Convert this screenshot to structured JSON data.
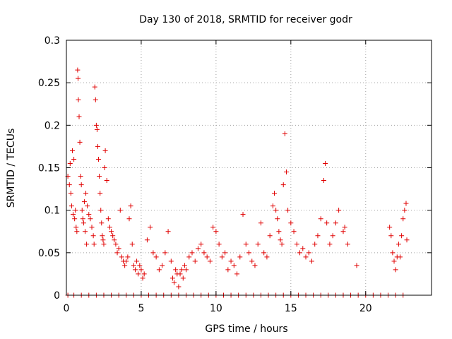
{
  "chart_data": {
    "type": "scatter",
    "title": "Day 130 of 2018, SRMTID for receiver godr",
    "xlabel": "GPS time / hours",
    "ylabel": "SRMTID / TECUs",
    "xlim": [
      0,
      24.4
    ],
    "ylim": [
      0,
      0.3
    ],
    "x_ticks": [
      0,
      5,
      10,
      15,
      20
    ],
    "x_tick_labels": [
      "0",
      "5",
      "10",
      "15",
      "20"
    ],
    "y_ticks": [
      0,
      0.05,
      0.1,
      0.15,
      0.2,
      0.25,
      0.3
    ],
    "y_tick_labels": [
      "0",
      "0.05",
      "0.1",
      "0.15",
      "0.2",
      "0.25",
      "0.3"
    ],
    "grid": true,
    "marker": "+",
    "series": [
      {
        "name": "SRMTID",
        "color": "#e00000",
        "points": [
          [
            0.1,
            0.14
          ],
          [
            0.2,
            0.13
          ],
          [
            0.25,
            0.155
          ],
          [
            0.3,
            0.12
          ],
          [
            0.35,
            0.105
          ],
          [
            0.4,
            0.17
          ],
          [
            0.45,
            0.095
          ],
          [
            0.5,
            0.16
          ],
          [
            0.55,
            0.09
          ],
          [
            0.6,
            0.1
          ],
          [
            0.65,
            0.08
          ],
          [
            0.7,
            0.075
          ],
          [
            0.75,
            0.265
          ],
          [
            0.78,
            0.255
          ],
          [
            0.8,
            0.23
          ],
          [
            0.85,
            0.21
          ],
          [
            0.9,
            0.18
          ],
          [
            0.95,
            0.14
          ],
          [
            1.0,
            0.13
          ],
          [
            1.05,
            0.1
          ],
          [
            1.1,
            0.09
          ],
          [
            1.15,
            0.085
          ],
          [
            1.2,
            0.11
          ],
          [
            1.25,
            0.075
          ],
          [
            1.3,
            0.12
          ],
          [
            1.35,
            0.06
          ],
          [
            1.4,
            0.105
          ],
          [
            1.5,
            0.095
          ],
          [
            1.6,
            0.09
          ],
          [
            1.7,
            0.08
          ],
          [
            1.8,
            0.07
          ],
          [
            1.85,
            0.06
          ],
          [
            1.9,
            0.245
          ],
          [
            1.95,
            0.23
          ],
          [
            2.0,
            0.2
          ],
          [
            2.05,
            0.195
          ],
          [
            2.1,
            0.175
          ],
          [
            2.15,
            0.16
          ],
          [
            2.2,
            0.14
          ],
          [
            2.25,
            0.12
          ],
          [
            2.3,
            0.1
          ],
          [
            2.35,
            0.085
          ],
          [
            2.4,
            0.07
          ],
          [
            2.45,
            0.065
          ],
          [
            2.5,
            0.06
          ],
          [
            2.55,
            0.15
          ],
          [
            2.6,
            0.17
          ],
          [
            2.7,
            0.135
          ],
          [
            2.8,
            0.09
          ],
          [
            2.9,
            0.08
          ],
          [
            3.0,
            0.075
          ],
          [
            3.1,
            0.07
          ],
          [
            3.2,
            0.065
          ],
          [
            3.3,
            0.06
          ],
          [
            3.4,
            0.05
          ],
          [
            3.5,
            0.055
          ],
          [
            3.6,
            0.1
          ],
          [
            3.7,
            0.045
          ],
          [
            3.8,
            0.04
          ],
          [
            3.9,
            0.035
          ],
          [
            4.0,
            0.04
          ],
          [
            4.1,
            0.045
          ],
          [
            4.2,
            0.09
          ],
          [
            4.3,
            0.105
          ],
          [
            4.4,
            0.06
          ],
          [
            4.5,
            0.035
          ],
          [
            4.6,
            0.03
          ],
          [
            4.7,
            0.04
          ],
          [
            4.8,
            0.025
          ],
          [
            4.9,
            0.035
          ],
          [
            5.0,
            0.03
          ],
          [
            5.1,
            0.02
          ],
          [
            5.2,
            0.025
          ],
          [
            5.4,
            0.065
          ],
          [
            5.6,
            0.08
          ],
          [
            5.8,
            0.05
          ],
          [
            6.0,
            0.045
          ],
          [
            6.2,
            0.03
          ],
          [
            6.4,
            0.035
          ],
          [
            6.6,
            0.05
          ],
          [
            6.8,
            0.075
          ],
          [
            7.0,
            0.04
          ],
          [
            7.1,
            0.02
          ],
          [
            7.2,
            0.015
          ],
          [
            7.3,
            0.03
          ],
          [
            7.4,
            0.025
          ],
          [
            7.5,
            0.01
          ],
          [
            7.6,
            0.025
          ],
          [
            7.7,
            0.03
          ],
          [
            7.8,
            0.02
          ],
          [
            7.9,
            0.035
          ],
          [
            8.0,
            0.03
          ],
          [
            8.2,
            0.045
          ],
          [
            8.4,
            0.05
          ],
          [
            8.6,
            0.04
          ],
          [
            8.8,
            0.055
          ],
          [
            9.0,
            0.06
          ],
          [
            9.2,
            0.05
          ],
          [
            9.4,
            0.045
          ],
          [
            9.6,
            0.04
          ],
          [
            9.8,
            0.08
          ],
          [
            10.0,
            0.075
          ],
          [
            10.2,
            0.06
          ],
          [
            10.4,
            0.045
          ],
          [
            10.6,
            0.05
          ],
          [
            10.8,
            0.03
          ],
          [
            11.0,
            0.04
          ],
          [
            11.2,
            0.035
          ],
          [
            11.4,
            0.025
          ],
          [
            11.6,
            0.045
          ],
          [
            11.8,
            0.095
          ],
          [
            12.0,
            0.06
          ],
          [
            12.2,
            0.05
          ],
          [
            12.4,
            0.04
          ],
          [
            12.6,
            0.035
          ],
          [
            12.8,
            0.06
          ],
          [
            13.0,
            0.085
          ],
          [
            13.2,
            0.05
          ],
          [
            13.4,
            0.045
          ],
          [
            13.6,
            0.07
          ],
          [
            13.8,
            0.105
          ],
          [
            13.9,
            0.12
          ],
          [
            14.0,
            0.1
          ],
          [
            14.1,
            0.09
          ],
          [
            14.2,
            0.075
          ],
          [
            14.3,
            0.065
          ],
          [
            14.4,
            0.06
          ],
          [
            14.5,
            0.13
          ],
          [
            14.6,
            0.19
          ],
          [
            14.7,
            0.145
          ],
          [
            14.8,
            0.1
          ],
          [
            15.0,
            0.085
          ],
          [
            15.2,
            0.075
          ],
          [
            15.4,
            0.06
          ],
          [
            15.6,
            0.05
          ],
          [
            15.8,
            0.055
          ],
          [
            16.0,
            0.045
          ],
          [
            16.2,
            0.05
          ],
          [
            16.4,
            0.04
          ],
          [
            16.6,
            0.06
          ],
          [
            16.8,
            0.07
          ],
          [
            17.0,
            0.09
          ],
          [
            17.2,
            0.135
          ],
          [
            17.3,
            0.155
          ],
          [
            17.4,
            0.085
          ],
          [
            17.6,
            0.06
          ],
          [
            17.8,
            0.07
          ],
          [
            18.0,
            0.085
          ],
          [
            18.2,
            0.1
          ],
          [
            18.5,
            0.075
          ],
          [
            18.6,
            0.08
          ],
          [
            18.8,
            0.06
          ],
          [
            19.4,
            0.035
          ],
          [
            21.6,
            0.08
          ],
          [
            21.7,
            0.07
          ],
          [
            21.8,
            0.05
          ],
          [
            21.9,
            0.04
          ],
          [
            22.0,
            0.03
          ],
          [
            22.1,
            0.045
          ],
          [
            22.2,
            0.06
          ],
          [
            22.3,
            0.045
          ],
          [
            22.4,
            0.07
          ],
          [
            22.5,
            0.09
          ],
          [
            22.6,
            0.1
          ],
          [
            22.7,
            0.108
          ],
          [
            22.75,
            0.065
          ],
          [
            0.1,
            0
          ],
          [
            0.5,
            0
          ],
          [
            1.0,
            0
          ],
          [
            1.5,
            0
          ],
          [
            2.0,
            0
          ],
          [
            2.5,
            0
          ],
          [
            3.0,
            0
          ],
          [
            3.5,
            0
          ],
          [
            4.0,
            0
          ],
          [
            4.5,
            0
          ],
          [
            5.0,
            0
          ],
          [
            5.5,
            0
          ],
          [
            6.0,
            0
          ],
          [
            6.5,
            0
          ],
          [
            7.0,
            0
          ],
          [
            7.5,
            0
          ],
          [
            8.0,
            0
          ],
          [
            8.5,
            0
          ],
          [
            9.0,
            0
          ],
          [
            9.5,
            0
          ],
          [
            10.0,
            0
          ],
          [
            10.5,
            0
          ],
          [
            11.0,
            0
          ],
          [
            11.5,
            0
          ],
          [
            12.0,
            0
          ],
          [
            12.5,
            0
          ],
          [
            13.0,
            0
          ],
          [
            13.5,
            0
          ],
          [
            14.0,
            0
          ],
          [
            14.5,
            0
          ],
          [
            15.0,
            0
          ],
          [
            15.5,
            0
          ],
          [
            16.0,
            0
          ],
          [
            16.5,
            0
          ],
          [
            17.0,
            0
          ],
          [
            17.5,
            0
          ],
          [
            18.0,
            0
          ],
          [
            18.5,
            0
          ],
          [
            19.0,
            0
          ],
          [
            19.5,
            0
          ],
          [
            20.0,
            0
          ],
          [
            20.5,
            0
          ],
          [
            21.0,
            0
          ],
          [
            21.5,
            0
          ],
          [
            22.0,
            0
          ],
          [
            22.5,
            0
          ]
        ]
      }
    ]
  }
}
